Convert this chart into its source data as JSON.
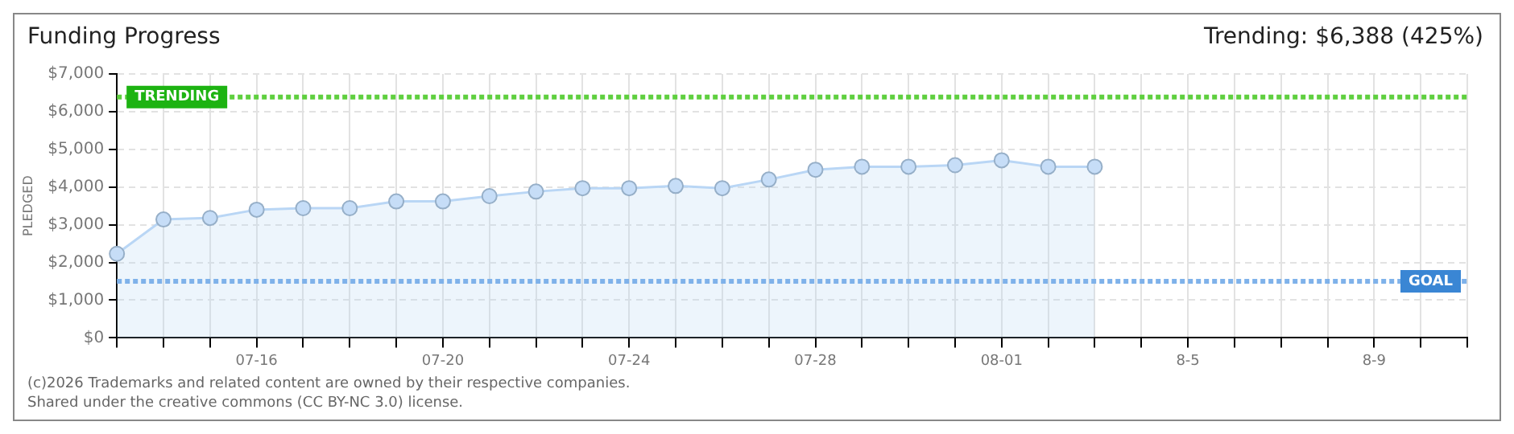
{
  "chart_data": {
    "type": "area",
    "title": "Funding Progress",
    "subtitle": "Trending: $6,388 (425%)",
    "ylabel": "PLEDGED",
    "categories": [
      null,
      null,
      null,
      "07-16",
      null,
      null,
      null,
      "07-20",
      null,
      null,
      null,
      "07-24",
      null,
      null,
      null,
      "07-28",
      null,
      null,
      null,
      "08-01",
      null,
      null,
      null,
      "8-5",
      null,
      null,
      null,
      "8-9",
      null,
      null
    ],
    "series": [
      {
        "color": "#b9d6f5",
        "values": [
          2230,
          3140,
          3180,
          3400,
          3440,
          3440,
          3620,
          3620,
          3760,
          3880,
          3970,
          3970,
          4030,
          3970,
          4200,
          4460,
          4540,
          4540,
          4580,
          4710,
          4540,
          4540,
          null,
          null,
          null,
          null,
          null,
          null,
          null,
          null
        ]
      }
    ],
    "ylim": [
      0,
      7000
    ],
    "yticks": [
      {
        "value": 0,
        "label": "$0"
      },
      {
        "value": 1000,
        "label": "$1,000"
      },
      {
        "value": 2000,
        "label": "$2,000"
      },
      {
        "value": 3000,
        "label": "$3,000"
      },
      {
        "value": 4000,
        "label": "$4,000"
      },
      {
        "value": 5000,
        "label": "$5,000"
      },
      {
        "value": 6000,
        "label": "$6,000"
      },
      {
        "value": 7000,
        "label": "$7,000"
      }
    ],
    "ref_lines": [
      {
        "axis": "y",
        "value": 6388,
        "label": "TRENDING",
        "color": "#5fcf3f",
        "line_style": "dotted"
      },
      {
        "axis": "y",
        "value": 1500,
        "label": "GOAL",
        "color": "#7fb2ea",
        "line_style": "dotted"
      }
    ],
    "grid": true,
    "marker": "circle",
    "legend": false,
    "annotations": [
      "(c)2026 Trademarks and related content are owned by their respective companies.",
      "Shared under the creative commons (CC BY-NC 3.0) license."
    ]
  }
}
